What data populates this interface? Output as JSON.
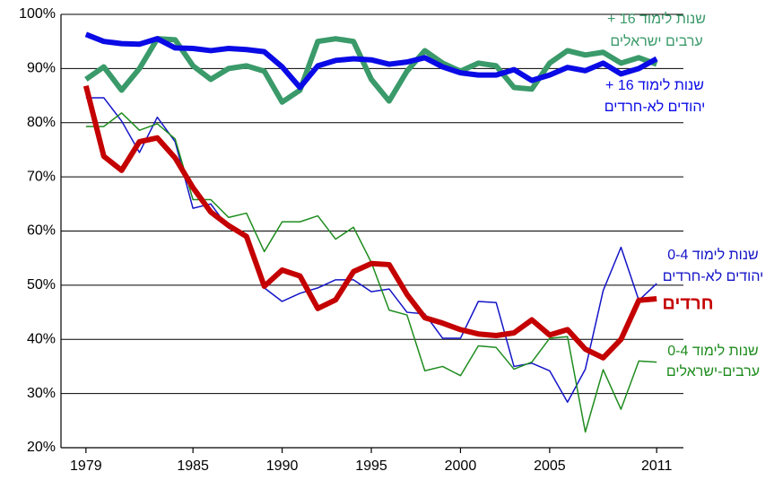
{
  "chart_data": {
    "type": "line",
    "x": [
      1979,
      1980,
      1981,
      1982,
      1983,
      1984,
      1985,
      1986,
      1987,
      1988,
      1989,
      1990,
      1991,
      1992,
      1993,
      1994,
      1995,
      1996,
      1997,
      1998,
      1999,
      2000,
      2001,
      2002,
      2003,
      2004,
      2005,
      2006,
      2007,
      2008,
      2009,
      2010,
      2011
    ],
    "xlim": [
      1977.6,
      2012.5
    ],
    "xticks": [
      1979,
      1985,
      1990,
      1995,
      2000,
      2005,
      2011
    ],
    "ylim": [
      20,
      100
    ],
    "yticks": [
      {
        "value": 20,
        "label": "20%"
      },
      {
        "value": 30,
        "label": "30%"
      },
      {
        "value": 40,
        "label": "40%"
      },
      {
        "value": 50,
        "label": "50%"
      },
      {
        "value": 60,
        "label": "60%"
      },
      {
        "value": 70,
        "label": "70%"
      },
      {
        "value": 80,
        "label": "80%"
      },
      {
        "value": 90,
        "label": "90%"
      },
      {
        "value": 100,
        "label": "100%"
      }
    ],
    "grid": true,
    "series": [
      {
        "name": [
          "0-4 שנות לימוד",
          "יהודים לא-חרדים"
        ],
        "color": "#1414c8",
        "width": 1.5,
        "values": [
          84.6,
          84.6,
          80.3,
          74.5,
          81,
          76.5,
          64.2,
          65,
          60.5,
          59,
          49.5,
          47,
          48.5,
          49.5,
          51,
          51,
          48.8,
          49.3,
          45,
          44.7,
          40.2,
          40.2,
          47,
          46.8,
          35,
          35.6,
          34.2,
          28.4,
          34.5,
          49,
          57,
          47.2,
          50.3
        ]
      },
      {
        "name": [
          "0-4 שנות לימוד",
          "ערבים-ישראלים"
        ],
        "color": "#1e8c1e",
        "width": 1.5,
        "values": [
          79.3,
          79.3,
          81.8,
          78.6,
          79.8,
          77,
          65.8,
          65.8,
          62.5,
          63.3,
          56.2,
          61.7,
          61.7,
          62.8,
          58.5,
          60.7,
          54.2,
          45.4,
          44.5,
          34.2,
          35,
          33.3,
          38.8,
          38.5,
          34.5,
          35.8,
          40.2,
          40.5,
          22.9,
          34.4,
          27.1,
          36,
          35.8
        ]
      },
      {
        "name": [
          "+ 16 שנות לימוד",
          "ערבים ישראלים"
        ],
        "color": "#3a9a6a",
        "width": 6,
        "values": [
          88,
          90.3,
          86,
          90,
          95.5,
          95.3,
          90.5,
          88,
          90,
          90.5,
          89.5,
          83.8,
          86,
          95,
          95.5,
          95,
          88,
          84,
          89.5,
          93.3,
          91,
          89.5,
          91,
          90.5,
          86.5,
          86.2,
          91,
          93.3,
          92.5,
          93,
          91,
          92,
          90.8
        ]
      },
      {
        "name": [
          "+ 16 שנות לימוד",
          "יהודים לא-חרדים"
        ],
        "color": "#0a0ae6",
        "width": 6,
        "values": [
          96.3,
          95,
          94.6,
          94.5,
          95.5,
          93.8,
          93.7,
          93.3,
          93.7,
          93.5,
          93.1,
          90.3,
          86.5,
          90.5,
          91.5,
          91.8,
          91.6,
          90.8,
          91.2,
          92,
          90.3,
          89.2,
          88.8,
          88.8,
          89.8,
          87.8,
          88.8,
          90.2,
          89.6,
          91,
          89,
          90,
          91.8
        ]
      },
      {
        "name": "חרדים",
        "color": "#c40000",
        "width": 6,
        "values": [
          86.8,
          73.8,
          71.2,
          76.5,
          77.2,
          73.5,
          68,
          63.5,
          61,
          59,
          49.8,
          52.8,
          51.7,
          45.7,
          47.3,
          52.5,
          54,
          53.8,
          48.3,
          44,
          43,
          41.8,
          41,
          40.7,
          41.2,
          43.6,
          40.8,
          41.8,
          38.2,
          36.6,
          40,
          47.2,
          47.5
        ]
      }
    ]
  }
}
